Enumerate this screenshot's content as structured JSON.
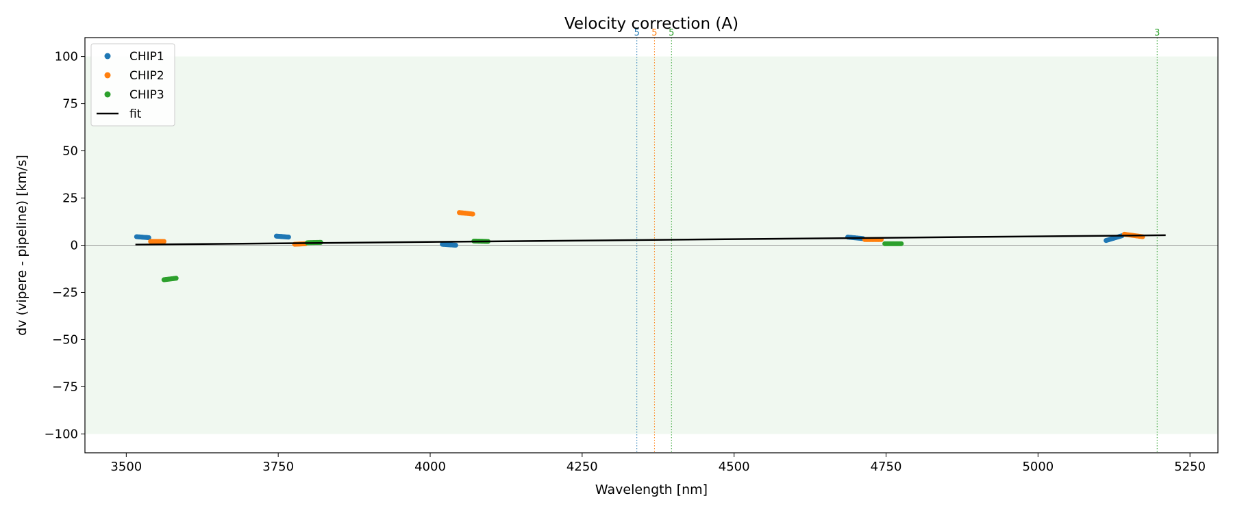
{
  "chart_data": {
    "type": "scatter",
    "title": "Velocity correction (A)",
    "xlabel": "Wavelength [nm]",
    "ylabel": "dv (vipere - pipeline) [km/s]",
    "xlim": [
      3432,
      5296
    ],
    "ylim": [
      -110,
      110
    ],
    "x_ticks": [
      3500,
      3750,
      4000,
      4250,
      4500,
      4750,
      5000,
      5250
    ],
    "y_ticks": [
      -100,
      -75,
      -50,
      -25,
      0,
      25,
      50,
      75,
      100
    ],
    "x_tick_labels": [
      "3500",
      "3750",
      "4000",
      "4250",
      "4500",
      "4750",
      "5000",
      "5250"
    ],
    "y_tick_labels": [
      "−100",
      "−75",
      "−50",
      "−25",
      "0",
      "25",
      "50",
      "75",
      "100"
    ],
    "band": {
      "y0": -100,
      "y1": 100,
      "color": "#f0f8f0"
    },
    "zero_line": {
      "y": 0,
      "color": "#999999"
    },
    "legend_position": "top-left",
    "legend": [
      {
        "label": "CHIP1",
        "kind": "marker",
        "color": "#1f77b4"
      },
      {
        "label": "CHIP2",
        "kind": "marker",
        "color": "#ff7f0e"
      },
      {
        "label": "CHIP3",
        "kind": "marker",
        "color": "#2ca02c"
      },
      {
        "label": "fit",
        "kind": "line",
        "color": "#000000"
      }
    ],
    "series": [
      {
        "name": "CHIP1",
        "color": "#1f77b4",
        "segments": [
          {
            "x0": 3517,
            "x1": 3537,
            "y0": 4.5,
            "y1": 4.0
          },
          {
            "x0": 3747,
            "x1": 3767,
            "y0": 4.8,
            "y1": 4.3
          },
          {
            "x0": 4020,
            "x1": 4042,
            "y0": 0.5,
            "y1": 0.0
          },
          {
            "x0": 4687,
            "x1": 4712,
            "y0": 4.3,
            "y1": 3.5
          },
          {
            "x0": 5112,
            "x1": 5138,
            "y0": 2.5,
            "y1": 5.0
          }
        ]
      },
      {
        "name": "CHIP2",
        "color": "#ff7f0e",
        "segments": [
          {
            "x0": 3540,
            "x1": 3562,
            "y0": 2.0,
            "y1": 2.0
          },
          {
            "x0": 3777,
            "x1": 3795,
            "y0": 0.5,
            "y1": 0.8
          },
          {
            "x0": 4048,
            "x1": 4070,
            "y0": 17.3,
            "y1": 16.5
          },
          {
            "x0": 4715,
            "x1": 4742,
            "y0": 3.0,
            "y1": 3.0
          },
          {
            "x0": 5142,
            "x1": 5172,
            "y0": 5.8,
            "y1": 4.5
          }
        ]
      },
      {
        "name": "CHIP3",
        "color": "#2ca02c",
        "segments": [
          {
            "x0": 3562,
            "x1": 3582,
            "y0": -18.3,
            "y1": -17.5
          },
          {
            "x0": 3798,
            "x1": 3820,
            "y0": 1.3,
            "y1": 1.5
          },
          {
            "x0": 4072,
            "x1": 4095,
            "y0": 2.2,
            "y1": 2.0
          },
          {
            "x0": 4748,
            "x1": 4775,
            "y0": 0.8,
            "y1": 0.8
          }
        ]
      }
    ],
    "fit": {
      "name": "fit",
      "x": [
        3515,
        5210
      ],
      "y": [
        0.3,
        5.3
      ],
      "color": "#000000"
    },
    "markers": [
      {
        "x": 4340,
        "label": "5",
        "color": "#1f77b4"
      },
      {
        "x": 4369,
        "label": "5",
        "color": "#ff7f0e"
      },
      {
        "x": 4397,
        "label": "5",
        "color": "#2ca02c"
      },
      {
        "x": 5196,
        "label": "3",
        "color": "#2ca02c"
      }
    ]
  }
}
